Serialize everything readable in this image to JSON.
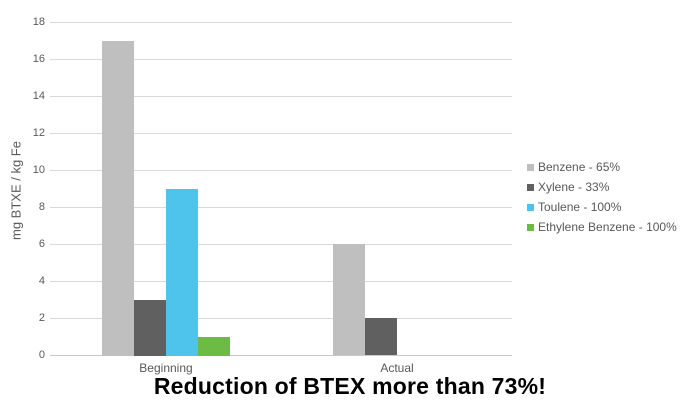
{
  "chart_data": {
    "type": "bar",
    "title": "Reduction of BTEX more than 73%!",
    "ylabel": "mg BTXE / kg Fe",
    "xlabel": "",
    "categories": [
      "Beginning",
      "Actual"
    ],
    "series": [
      {
        "name": "Benzene - 65%",
        "color": "#bfbfbf",
        "values": [
          17,
          6
        ]
      },
      {
        "name": "Xylene - 33%",
        "color": "#606060",
        "values": [
          3,
          2
        ]
      },
      {
        "name": "Toulene - 100%",
        "color": "#4ec3ec",
        "values": [
          9,
          0
        ]
      },
      {
        "name": "Ethylene Benzene - 100%",
        "color": "#6cbb45",
        "values": [
          1,
          0
        ]
      }
    ],
    "ylim": [
      0,
      18
    ],
    "yticks": [
      0,
      2,
      4,
      6,
      8,
      10,
      12,
      14,
      16,
      18
    ],
    "grid": true,
    "legend_position": "right",
    "colors": {
      "gridline": "#d9d9d9",
      "axis_text": "#595959",
      "title_text": "#000000",
      "background": "#ffffff"
    }
  }
}
